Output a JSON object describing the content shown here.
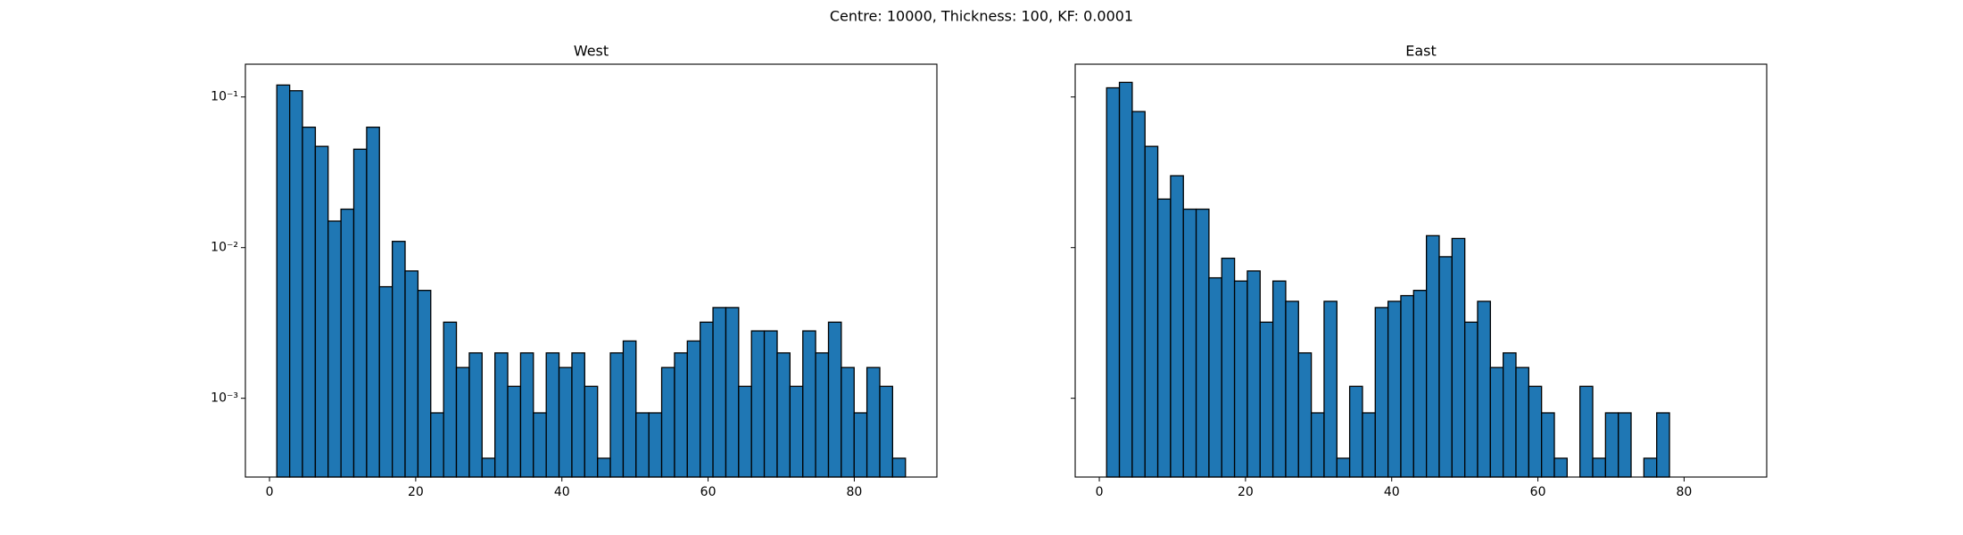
{
  "title": "Centre: 10000, Thickness: 100, KF: 0.0001",
  "chart_data": [
    {
      "type": "histogram",
      "title": "West",
      "color": "#1f77b4",
      "edgecolor": "#000000",
      "log_y": true,
      "bins": [
        1,
        2.76,
        4.51,
        6.27,
        8.02,
        9.78,
        11.53,
        13.29,
        15.04,
        16.8,
        18.55,
        20.31,
        22.06,
        23.82,
        25.57,
        27.33,
        29.08,
        30.84,
        32.59,
        34.35,
        36.1,
        37.86,
        39.61,
        41.37,
        43.12,
        44.88,
        46.63,
        48.39,
        50.14,
        51.9,
        53.65,
        55.41,
        57.16,
        58.92,
        60.67,
        62.43,
        64.18,
        65.94,
        67.69,
        69.45,
        71.2,
        72.96,
        74.71,
        76.47,
        78.22,
        79.98,
        81.73,
        83.49,
        85.24,
        87
      ],
      "values": [
        0.12,
        0.11,
        0.063,
        0.047,
        0.015,
        0.018,
        0.045,
        0.063,
        0.0055,
        0.011,
        0.007,
        0.0052,
        0.0008,
        0.0032,
        0.0016,
        0.002,
        0.0004,
        0.002,
        0.0012,
        0.002,
        0.0008,
        0.002,
        0.0016,
        0.002,
        0.0012,
        0.0004,
        0.002,
        0.0024,
        0.0008,
        0.0008,
        0.0016,
        0.002,
        0.0024,
        0.0032,
        0.004,
        0.004,
        0.0012,
        0.0028,
        0.0028,
        0.002,
        0.0012,
        0.0028,
        0.002,
        0.0032,
        0.0016,
        0.0008,
        0.0016,
        0.0012,
        0.0004
      ],
      "xlim": [
        -3.3,
        91.3
      ],
      "xticks": [
        0,
        20,
        40,
        60,
        80
      ],
      "ylim": [
        0.0003,
        0.165
      ],
      "yticks": [
        {
          "value": 0.001,
          "label": "10⁻³"
        },
        {
          "value": 0.01,
          "label": "10⁻²"
        },
        {
          "value": 0.1,
          "label": "10⁻¹"
        }
      ]
    },
    {
      "type": "histogram",
      "title": "East",
      "color": "#1f77b4",
      "edgecolor": "#000000",
      "log_y": true,
      "bins": [
        1,
        2.75,
        4.5,
        6.25,
        8,
        9.75,
        11.5,
        13.25,
        15,
        16.75,
        18.5,
        20.25,
        22,
        23.75,
        25.5,
        27.25,
        29,
        30.75,
        32.5,
        34.25,
        36,
        37.75,
        39.5,
        41.25,
        43,
        44.75,
        46.5,
        48.25,
        50,
        51.75,
        53.5,
        55.25,
        57,
        58.75,
        60.5,
        62.25,
        64,
        65.75,
        67.5,
        69.25,
        71,
        72.75,
        74.5,
        76.25,
        78
      ],
      "values": [
        0.115,
        0.125,
        0.08,
        0.047,
        0.021,
        0.03,
        0.018,
        0.018,
        0.0063,
        0.0085,
        0.006,
        0.007,
        0.0032,
        0.006,
        0.0044,
        0.002,
        0.0008,
        0.0044,
        0.0004,
        0.0012,
        0.0008,
        0.004,
        0.0044,
        0.0048,
        0.0052,
        0.012,
        0.0087,
        0.0115,
        0.0032,
        0.0044,
        0.0016,
        0.002,
        0.0016,
        0.0012,
        0.0008,
        0.0004,
        0,
        0.0012,
        0.0004,
        0.0008,
        0.0008,
        0,
        0.0004,
        0.0008
      ],
      "xlim": [
        -3.3,
        91.3
      ],
      "xticks": [
        0,
        20,
        40,
        60,
        80
      ],
      "ylim": [
        0.0003,
        0.165
      ],
      "yticks": [
        {
          "value": 0.001
        },
        {
          "value": 0.01
        },
        {
          "value": 0.1
        }
      ]
    }
  ]
}
